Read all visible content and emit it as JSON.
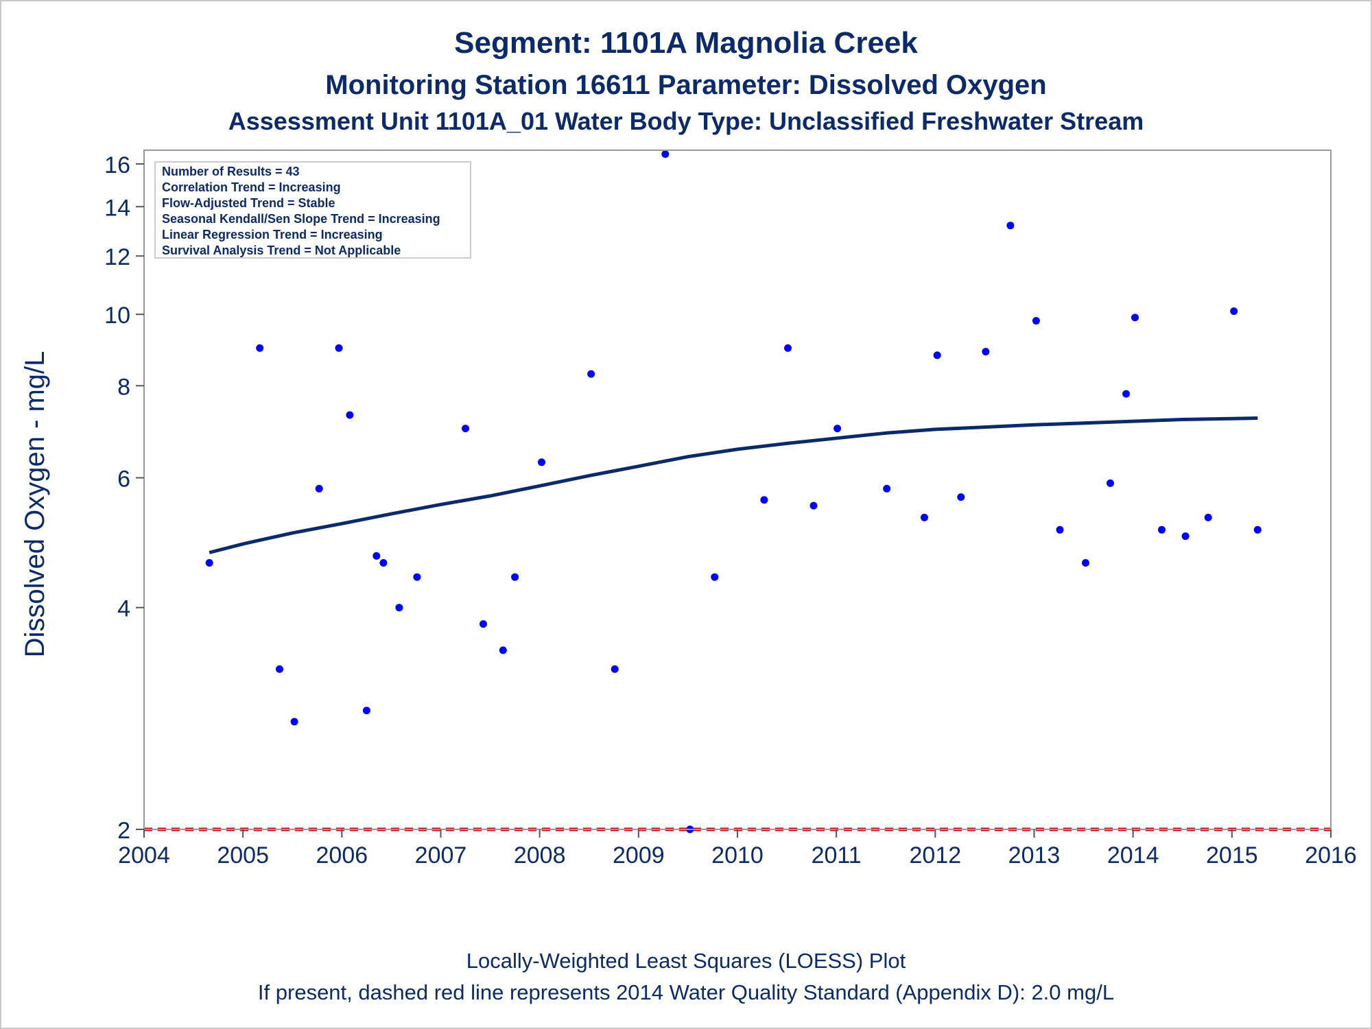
{
  "titles": {
    "line1": "Segment: 1101A  Magnolia Creek",
    "line2": "Monitoring Station 16611 Parameter: Dissolved Oxygen",
    "line3": "Assessment Unit 1101A_01   Water Body Type: Unclassified Freshwater Stream"
  },
  "footnotes": {
    "line1": "Locally-Weighted Least Squares (LOESS) Plot",
    "line2": "If present, dashed red line represents 2014 Water Quality Standard (Appendix D): 2.0 mg/L"
  },
  "colors": {
    "text": "#0b2a6b",
    "points": "#0000ff",
    "loess": "#0b2a6b",
    "standard": "#dd0000",
    "axis": "#999999"
  },
  "chart_data": {
    "type": "scatter",
    "y_scale": "log",
    "xlim": [
      2004,
      2016
    ],
    "ylim": [
      2,
      16.7
    ],
    "xlabel": "",
    "ylabel": "Dissolved Oxygen - mg/L",
    "x_ticks": [
      2004,
      2005,
      2006,
      2007,
      2008,
      2009,
      2010,
      2011,
      2012,
      2013,
      2014,
      2015,
      2016
    ],
    "y_ticks": [
      2,
      4,
      6,
      8,
      10,
      12,
      14,
      16
    ],
    "legend_box": [
      "Number of Results = 43",
      "Correlation Trend = Increasing",
      "Flow-Adjusted Trend = Stable",
      "Seasonal Kendall/Sen Slope Trend = Increasing",
      "Linear Regression Trend = Increasing",
      "Survival Analysis Trend = Not Applicable"
    ],
    "points": [
      [
        2004.66,
        4.6
      ],
      [
        2005.17,
        9.0
      ],
      [
        2005.37,
        3.3
      ],
      [
        2005.52,
        2.8
      ],
      [
        2005.77,
        5.8
      ],
      [
        2005.97,
        9.0
      ],
      [
        2006.08,
        7.3
      ],
      [
        2006.25,
        2.9
      ],
      [
        2006.35,
        4.7
      ],
      [
        2006.42,
        4.6
      ],
      [
        2006.58,
        4.0
      ],
      [
        2006.76,
        4.4
      ],
      [
        2007.25,
        7.0
      ],
      [
        2007.43,
        3.8
      ],
      [
        2007.63,
        3.5
      ],
      [
        2007.75,
        4.4
      ],
      [
        2008.02,
        6.3
      ],
      [
        2008.52,
        8.3
      ],
      [
        2008.76,
        3.3
      ],
      [
        2009.27,
        16.5
      ],
      [
        2009.52,
        2.0
      ],
      [
        2009.77,
        4.4
      ],
      [
        2010.27,
        5.6
      ],
      [
        2010.51,
        9.0
      ],
      [
        2010.77,
        5.5
      ],
      [
        2011.01,
        7.0
      ],
      [
        2011.51,
        5.8
      ],
      [
        2011.89,
        5.3
      ],
      [
        2012.02,
        8.8
      ],
      [
        2012.26,
        5.65
      ],
      [
        2012.51,
        8.9
      ],
      [
        2012.76,
        13.2
      ],
      [
        2013.02,
        9.8
      ],
      [
        2013.26,
        5.1
      ],
      [
        2013.52,
        4.6
      ],
      [
        2013.77,
        5.9
      ],
      [
        2013.93,
        7.8
      ],
      [
        2014.02,
        9.9
      ],
      [
        2014.29,
        5.1
      ],
      [
        2014.53,
        5.0
      ],
      [
        2014.76,
        5.3
      ],
      [
        2015.02,
        10.1
      ],
      [
        2015.26,
        5.1
      ]
    ],
    "loess": [
      [
        2004.66,
        4.75
      ],
      [
        2005.0,
        4.88
      ],
      [
        2005.5,
        5.05
      ],
      [
        2006.0,
        5.2
      ],
      [
        2006.5,
        5.36
      ],
      [
        2007.0,
        5.52
      ],
      [
        2007.5,
        5.67
      ],
      [
        2008.0,
        5.85
      ],
      [
        2008.5,
        6.04
      ],
      [
        2009.0,
        6.22
      ],
      [
        2009.5,
        6.41
      ],
      [
        2010.0,
        6.56
      ],
      [
        2010.5,
        6.68
      ],
      [
        2011.0,
        6.79
      ],
      [
        2011.5,
        6.9
      ],
      [
        2012.0,
        6.98
      ],
      [
        2012.5,
        7.03
      ],
      [
        2013.0,
        7.08
      ],
      [
        2013.5,
        7.12
      ],
      [
        2014.0,
        7.16
      ],
      [
        2014.5,
        7.2
      ],
      [
        2015.0,
        7.22
      ],
      [
        2015.26,
        7.23
      ]
    ],
    "reference_line": {
      "y": 2.0,
      "style": "dashed",
      "color": "#dd0000"
    }
  }
}
